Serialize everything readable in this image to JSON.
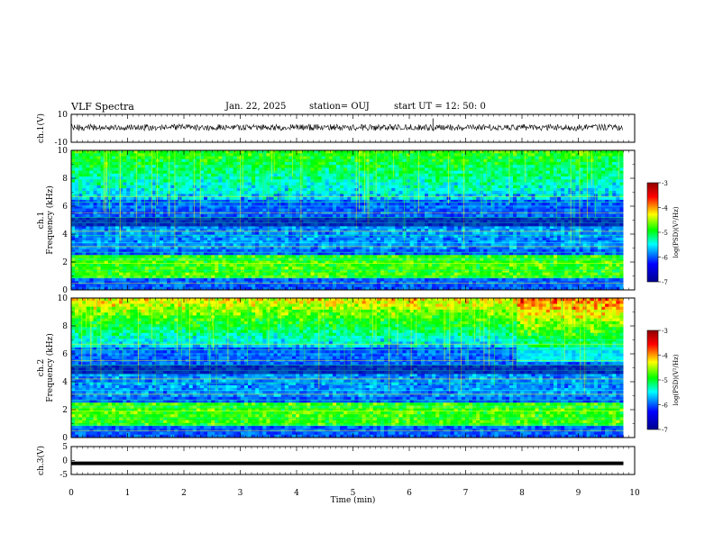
{
  "header": {
    "title": "VLF Spectra",
    "date": "Jan. 22, 2025",
    "station": "station= OUJ",
    "start": "start UT =  12: 50: 0"
  },
  "chart_data": [
    {
      "type": "line",
      "panel": "ch1-waveform",
      "ylabel": "ch.1(V)",
      "ylim": [
        -10,
        10
      ],
      "yticks": [
        "10",
        "-10"
      ],
      "x": [
        0,
        9.8
      ],
      "description_level": 0
    },
    {
      "type": "heatmap",
      "panel": "ch1-spectrogram",
      "ylabel": "ch.1\nFrequency (kHz)",
      "ylim": [
        0,
        10
      ],
      "yticks": [
        "0",
        "2",
        "4",
        "6",
        "8",
        "10"
      ],
      "xlim": [
        0,
        10
      ],
      "data_extent_min": 9.8,
      "colorbar": {
        "label": "log(PSD)(V²/Hz)",
        "range": [
          -7,
          -3
        ],
        "ticks": [
          "-3",
          "-4",
          "-5",
          "-6",
          "-7"
        ]
      }
    },
    {
      "type": "heatmap",
      "panel": "ch2-spectrogram",
      "ylabel": "ch.2\nFrequency (kHz)",
      "ylim": [
        0,
        10
      ],
      "yticks": [
        "0",
        "2",
        "4",
        "6",
        "8",
        "10"
      ],
      "xlim": [
        0,
        10
      ],
      "data_extent_min": 9.8,
      "colorbar": {
        "label": "log(PSD)(V²/Hz)",
        "range": [
          -7,
          -3
        ],
        "ticks": [
          "-3",
          "-4",
          "-5",
          "-6",
          "-7"
        ]
      }
    },
    {
      "type": "line",
      "panel": "ch3-level",
      "ylabel": "ch.3(V)",
      "ylim": [
        -5,
        5
      ],
      "yticks": [
        "5",
        "0",
        "-5"
      ],
      "x": [
        0,
        9.8
      ],
      "y": [
        -1,
        -1
      ]
    }
  ],
  "xaxis": {
    "label": "Time (min)",
    "ticks": [
      "0",
      "1",
      "2",
      "3",
      "4",
      "5",
      "6",
      "7",
      "8",
      "9",
      "10"
    ],
    "xlim": [
      0,
      10
    ]
  },
  "colors": {
    "trace": "#000000",
    "colormap": [
      "#00008f",
      "#0000ff",
      "#00ffff",
      "#00ff00",
      "#ffff00",
      "#ff0000",
      "#8f0000"
    ]
  }
}
